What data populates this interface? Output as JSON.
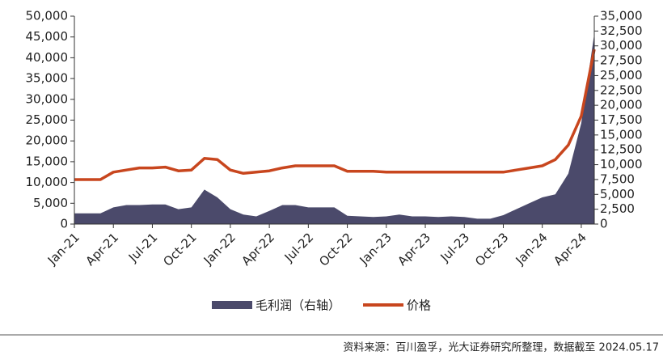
{
  "chart_data": {
    "type": "line-area",
    "categories": [
      "Jan-21",
      null,
      null,
      "Apr-21",
      null,
      null,
      "Jul-21",
      null,
      null,
      "Oct-21",
      null,
      null,
      "Jan-22",
      null,
      null,
      "Apr-22",
      null,
      null,
      "Jul-22",
      null,
      null,
      "Oct-22",
      null,
      null,
      "Jan-23",
      null,
      null,
      "Apr-23",
      null,
      null,
      "Jul-23",
      null,
      null,
      "Oct-23",
      null,
      null,
      "Jan-24",
      null,
      null,
      "Apr-24",
      null
    ],
    "series": [
      {
        "name": "毛利润（右轴）",
        "color": "#4b4a6b",
        "axis": "y2",
        "kind": "area",
        "values": [
          1800,
          1800,
          1800,
          2800,
          3200,
          3200,
          3300,
          3300,
          2500,
          2800,
          5800,
          4500,
          2500,
          1600,
          1300,
          2200,
          3200,
          3200,
          2800,
          2800,
          2800,
          1400,
          1300,
          1200,
          1300,
          1600,
          1300,
          1300,
          1200,
          1300,
          1200,
          900,
          900,
          1500,
          2500,
          3500,
          4500,
          5000,
          8500,
          17000,
          32000
        ]
      },
      {
        "name": "价格",
        "color": "#c8461e",
        "kind": "line",
        "values": [
          10700,
          10700,
          10700,
          12500,
          13000,
          13500,
          13500,
          13700,
          12800,
          13000,
          15800,
          15500,
          13000,
          12200,
          12500,
          12800,
          13500,
          14000,
          14000,
          14000,
          14000,
          12700,
          12700,
          12700,
          12500,
          12500,
          12500,
          12500,
          12500,
          12500,
          12500,
          12500,
          12500,
          12500,
          13000,
          13500,
          14000,
          15500,
          19000,
          26000,
          42000
        ]
      }
    ],
    "ylim": [
      0,
      50000
    ],
    "yticks": [
      0,
      {
        "value": 5000,
        "label": "5,000"
      },
      {
        "value": 10000,
        "label": "10,000"
      },
      {
        "value": 15000,
        "label": "15,000"
      },
      {
        "value": 20000,
        "label": "20,000"
      },
      {
        "value": 25000,
        "label": "25,000"
      },
      {
        "value": 30000,
        "label": "30,000"
      },
      {
        "value": 35000,
        "label": "35,000"
      },
      {
        "value": 40000,
        "label": "40,000"
      },
      {
        "value": 45000,
        "label": "45,000"
      },
      {
        "value": 50000,
        "label": "50,000"
      }
    ],
    "y2lim": [
      0,
      35000
    ],
    "y2ticks": [
      0,
      {
        "value": 2500,
        "label": "2,500"
      },
      {
        "value": 5000,
        "label": "5,000"
      },
      {
        "value": 7500,
        "label": "7,500"
      },
      {
        "value": 10000,
        "label": "10,000"
      },
      {
        "value": 12500,
        "label": "12,500"
      },
      {
        "value": 15000,
        "label": "15,000"
      },
      {
        "value": 17500,
        "label": "17,500"
      },
      {
        "value": 20000,
        "label": "20,000"
      },
      {
        "value": 22500,
        "label": "22,500"
      },
      {
        "value": 25000,
        "label": "25,000"
      },
      {
        "value": 27500,
        "label": "27,500"
      },
      {
        "value": 30000,
        "label": "30,000"
      },
      {
        "value": 32500,
        "label": "32,500"
      },
      {
        "value": 35000,
        "label": "35,000"
      }
    ],
    "source": "资料来源：百川盈孚，光大证券研究所整理，数据截至 2024.05.17"
  }
}
